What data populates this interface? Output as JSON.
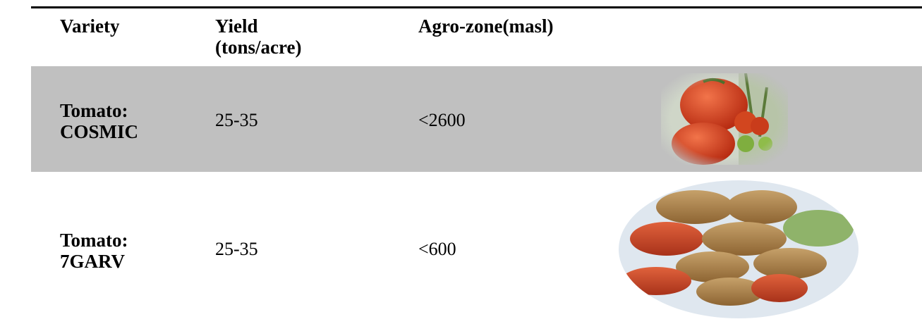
{
  "table": {
    "headers": {
      "variety": "Variety",
      "yield_line1": "Yield",
      "yield_line2": "(tons/acre)",
      "agrozone": "Agro-zone(masl)"
    },
    "rows": [
      {
        "variety_line1": "Tomato:",
        "variety_line2": "COSMIC",
        "yield": "25-35",
        "agrozone": "<2600",
        "photo_icon": "tomato-cluster-photo-icon"
      },
      {
        "variety_line1": "Tomato:",
        "variety_line2": "7GARV",
        "yield": "25-35",
        "agrozone": "<600",
        "photo_icon": "plum-tomatoes-photo-icon"
      }
    ],
    "colors": {
      "shaded_row": "#c0c0c0",
      "rule": "#000000"
    }
  }
}
